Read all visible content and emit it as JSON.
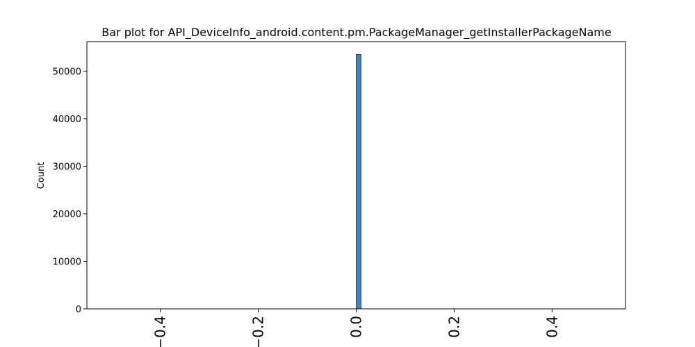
{
  "chart_data": {
    "type": "bar",
    "title": "Bar plot for API_DeviceInfo_android.content.pm.PackageManager_getInstallerPackageName",
    "xlabel": "",
    "ylabel": "Count",
    "xlim": [
      -0.55,
      0.55
    ],
    "ylim": [
      0,
      56200
    ],
    "x_ticks": [
      -0.4,
      -0.2,
      0.0,
      0.2,
      0.4
    ],
    "x_tick_labels": [
      "−0.4",
      "−0.2",
      "0.0",
      "0.2",
      "0.4"
    ],
    "y_ticks": [
      0,
      10000,
      20000,
      30000,
      40000,
      50000
    ],
    "y_tick_labels": [
      "0",
      "10000",
      "20000",
      "30000",
      "40000",
      "50000"
    ],
    "bars": [
      {
        "x0": 0.0,
        "x1": 0.01,
        "value": 53500
      }
    ],
    "bar_color": "#3f87c2",
    "bar_edge_color": "#1f1f1f",
    "grid": false,
    "legend": "none"
  }
}
